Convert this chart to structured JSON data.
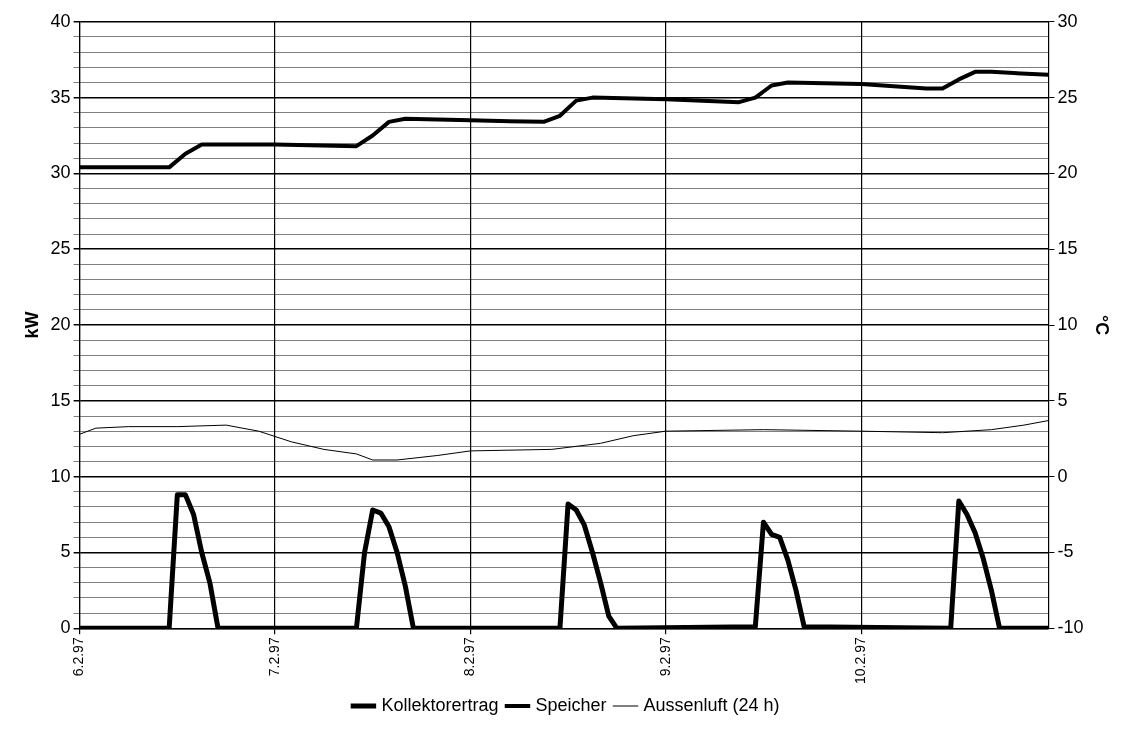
{
  "chart_data": {
    "type": "line",
    "ylabel": "kW",
    "y2label": "°C",
    "xlim": [
      "1997-02-06",
      "1997-02-10T23:00"
    ],
    "xticks": [
      {
        "value": "1997-02-06",
        "label": "6.2.97"
      },
      {
        "value": "1997-02-07",
        "label": "7.2.97"
      },
      {
        "value": "1997-02-08",
        "label": "8.2.97"
      },
      {
        "value": "1997-02-09",
        "label": "9.2.97"
      },
      {
        "value": "1997-02-10",
        "label": "10.2.97"
      }
    ],
    "ylim": [
      0,
      40
    ],
    "yticks": [
      0,
      {
        "value": 1,
        "label": null
      },
      {
        "value": 2,
        "label": null
      },
      {
        "value": 3,
        "label": null
      },
      {
        "value": 4,
        "label": null
      },
      5,
      {
        "value": 6,
        "label": null
      },
      {
        "value": 7,
        "label": null
      },
      {
        "value": 8,
        "label": null
      },
      {
        "value": 9,
        "label": null
      },
      10,
      {
        "value": 11,
        "label": null
      },
      {
        "value": 12,
        "label": null
      },
      {
        "value": 13,
        "label": null
      },
      {
        "value": 14,
        "label": null
      },
      15,
      {
        "value": 16,
        "label": null
      },
      {
        "value": 17,
        "label": null
      },
      {
        "value": 18,
        "label": null
      },
      {
        "value": 19,
        "label": null
      },
      20,
      {
        "value": 21,
        "label": null
      },
      {
        "value": 22,
        "label": null
      },
      {
        "value": 23,
        "label": null
      },
      {
        "value": 24,
        "label": null
      },
      25,
      {
        "value": 26,
        "label": null
      },
      {
        "value": 27,
        "label": null
      },
      {
        "value": 28,
        "label": null
      },
      {
        "value": 29,
        "label": null
      },
      30,
      {
        "value": 31,
        "label": null
      },
      {
        "value": 32,
        "label": null
      },
      {
        "value": 33,
        "label": null
      },
      {
        "value": 34,
        "label": null
      },
      35,
      {
        "value": 36,
        "label": null
      },
      {
        "value": 37,
        "label": null
      },
      {
        "value": 38,
        "label": null
      },
      {
        "value": 39,
        "label": null
      },
      40
    ],
    "y2lim": [
      -10,
      30
    ],
    "y2ticks": [
      -10,
      -5,
      0,
      5,
      10,
      15,
      20,
      25,
      30
    ],
    "grid": true,
    "legend": "bottom",
    "marker": "none",
    "line_style": "solid",
    "series": [
      {
        "name": "Kollektorertrag",
        "color": "#000000",
        "x": [
          "1997-02-06T00:00",
          "1997-02-06T11:00",
          "1997-02-06T12:00",
          "1997-02-06T13:00",
          "1997-02-06T14:00",
          "1997-02-06T15:00",
          "1997-02-06T16:00",
          "1997-02-06T17:00",
          "1997-02-07T10:00",
          "1997-02-07T11:00",
          "1997-02-07T12:00",
          "1997-02-07T13:00",
          "1997-02-07T14:00",
          "1997-02-07T15:00",
          "1997-02-07T16:00",
          "1997-02-07T17:00",
          "1997-02-08T11:00",
          "1997-02-08T12:00",
          "1997-02-08T13:00",
          "1997-02-08T14:00",
          "1997-02-08T15:00",
          "1997-02-08T16:00",
          "1997-02-08T17:00",
          "1997-02-08T18:00",
          "1997-02-09T11:00",
          "1997-02-09T12:00",
          "1997-02-09T13:00",
          "1997-02-09T14:00",
          "1997-02-09T15:00",
          "1997-02-09T16:00",
          "1997-02-09T17:00",
          "1997-02-10T11:00",
          "1997-02-10T12:00",
          "1997-02-10T13:00",
          "1997-02-10T14:00",
          "1997-02-10T15:00",
          "1997-02-10T16:00",
          "1997-02-10T17:00",
          "1997-02-10T23:00"
        ],
        "values": [
          0,
          0,
          8.8,
          8.8,
          7.5,
          5,
          3,
          0,
          0,
          5,
          7.8,
          7.6,
          6.7,
          5,
          2.8,
          0,
          0,
          8.2,
          7.8,
          6.8,
          5,
          3,
          0.8,
          0,
          0.1,
          7,
          6.2,
          6,
          4.5,
          2.5,
          0.1,
          0,
          8.4,
          7.5,
          6.3,
          4.6,
          2.5,
          0,
          0
        ]
      },
      {
        "name": "Speicher",
        "color": "#000000",
        "axis": "y2",
        "x": [
          "1997-02-06T00:00",
          "1997-02-06T11:00",
          "1997-02-06T13:00",
          "1997-02-06T15:00",
          "1997-02-07T00:00",
          "1997-02-07T10:00",
          "1997-02-07T12:00",
          "1997-02-07T14:00",
          "1997-02-07T16:00",
          "1997-02-08T00:00",
          "1997-02-08T09:00",
          "1997-02-08T11:00",
          "1997-02-08T13:00",
          "1997-02-08T15:00",
          "1997-02-09T00:00",
          "1997-02-09T09:00",
          "1997-02-09T11:00",
          "1997-02-09T13:00",
          "1997-02-09T15:00",
          "1997-02-10T00:00",
          "1997-02-10T08:00",
          "1997-02-10T10:00",
          "1997-02-10T12:00",
          "1997-02-10T14:00",
          "1997-02-10T16:00",
          "1997-02-10T23:00"
        ],
        "values": [
          20.4,
          20.4,
          21.3,
          21.9,
          21.9,
          21.8,
          22.5,
          23.4,
          23.6,
          23.5,
          23.4,
          23.8,
          24.8,
          25,
          24.9,
          24.7,
          25,
          25.8,
          26,
          25.9,
          25.6,
          25.6,
          26.2,
          26.7,
          26.7,
          26.5
        ]
      },
      {
        "name": "Aussenluft (24 h)",
        "color": "#000000",
        "axis": "y2",
        "x": [
          "1997-02-06T00:00",
          "1997-02-06T02:00",
          "1997-02-06T06:00",
          "1997-02-06T12:00",
          "1997-02-06T18:00",
          "1997-02-06T22:00",
          "1997-02-07T02:00",
          "1997-02-07T06:00",
          "1997-02-07T10:00",
          "1997-02-07T12:00",
          "1997-02-07T15:00",
          "1997-02-07T20:00",
          "1997-02-08T00:00",
          "1997-02-08T10:00",
          "1997-02-08T16:00",
          "1997-02-08T20:00",
          "1997-02-09T00:00",
          "1997-02-09T12:00",
          "1997-02-10T00:00",
          "1997-02-10T10:00",
          "1997-02-10T16:00",
          "1997-02-10T20:00",
          "1997-02-10T23:00"
        ],
        "values": [
          2.8,
          3.2,
          3.3,
          3.3,
          3.4,
          3,
          2.3,
          1.8,
          1.5,
          1.1,
          1.1,
          1.4,
          1.7,
          1.8,
          2.2,
          2.7,
          3,
          3.1,
          3,
          2.9,
          3.1,
          3.4,
          3.7
        ]
      }
    ]
  }
}
